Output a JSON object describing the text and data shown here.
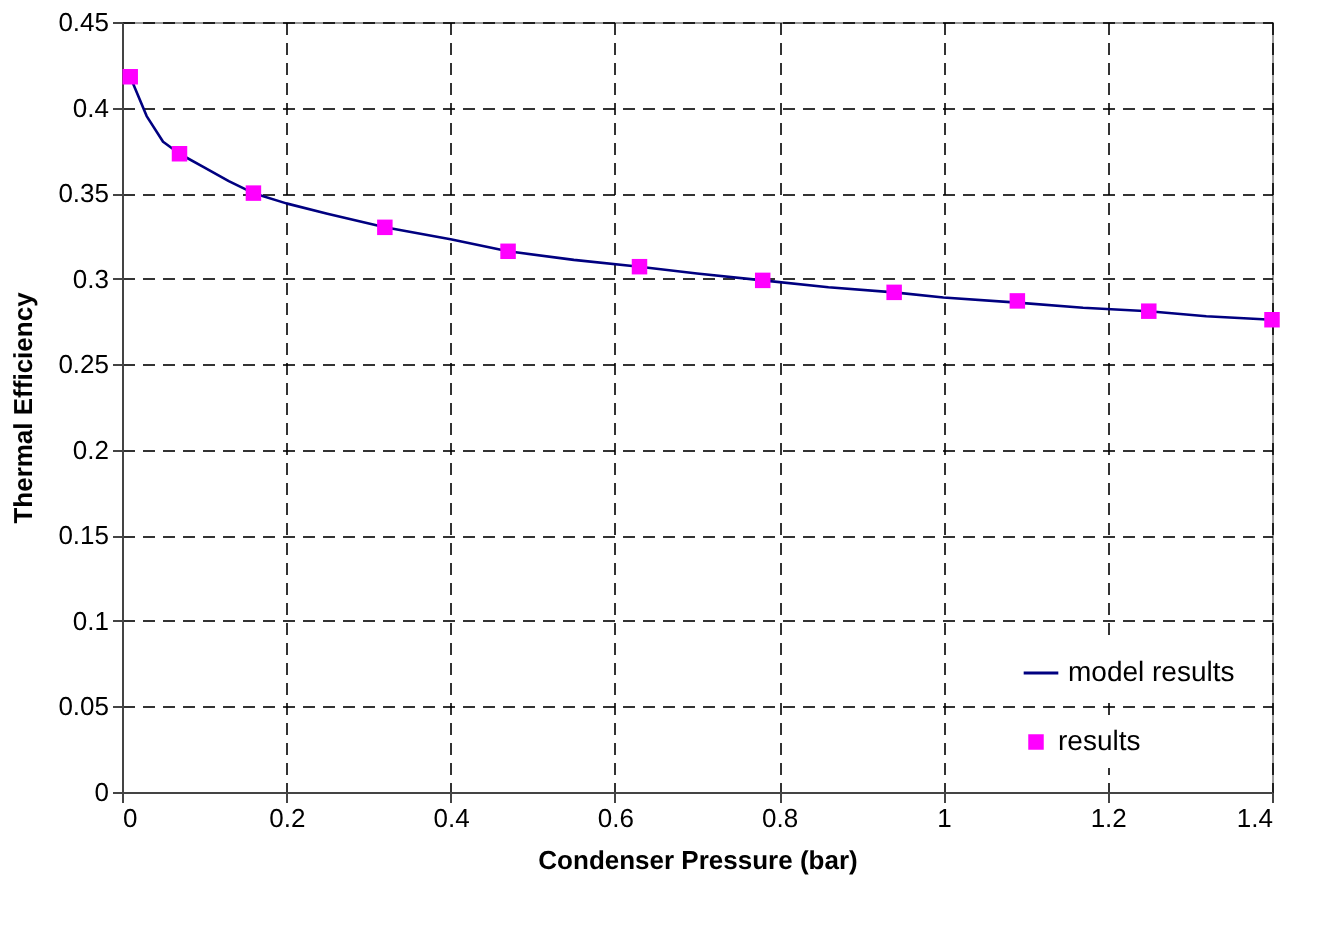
{
  "chart_data": {
    "type": "line",
    "xlabel": "Condenser Pressure (bar)",
    "ylabel": "Thermal Efficiency",
    "series": [
      {
        "name": "model results",
        "color": "#000080",
        "marker": "none",
        "x": [
          0.01,
          0.03,
          0.05,
          0.07,
          0.1,
          0.13,
          0.16,
          0.2,
          0.25,
          0.32,
          0.4,
          0.47,
          0.55,
          0.63,
          0.7,
          0.78,
          0.86,
          0.94,
          1.0,
          1.09,
          1.17,
          1.25,
          1.32,
          1.4
        ],
        "values": [
          0.418,
          0.395,
          0.38,
          0.373,
          0.365,
          0.357,
          0.35,
          0.344,
          0.338,
          0.33,
          0.323,
          0.316,
          0.311,
          0.307,
          0.303,
          0.299,
          0.295,
          0.292,
          0.289,
          0.286,
          0.283,
          0.281,
          0.278,
          0.276
        ]
      },
      {
        "name": "results",
        "type": "scatter",
        "color": "#ff00ff",
        "marker": "square",
        "x": [
          0.01,
          0.07,
          0.16,
          0.32,
          0.47,
          0.63,
          0.78,
          0.94,
          1.09,
          1.25,
          1.4
        ],
        "values": [
          0.418,
          0.373,
          0.35,
          0.33,
          0.316,
          0.307,
          0.299,
          0.292,
          0.287,
          0.281,
          0.276
        ]
      }
    ],
    "xlim": [
      0,
      1.4
    ],
    "xticks": [
      0,
      0.2,
      0.4,
      0.6,
      0.8,
      1,
      1.2,
      1.4
    ],
    "ylim": [
      0,
      0.45
    ],
    "yticks": [
      0,
      0.05,
      0.1,
      0.15,
      0.2,
      0.25,
      0.3,
      0.35,
      0.4,
      0.45
    ],
    "grid": true,
    "legend": "bottom right"
  }
}
